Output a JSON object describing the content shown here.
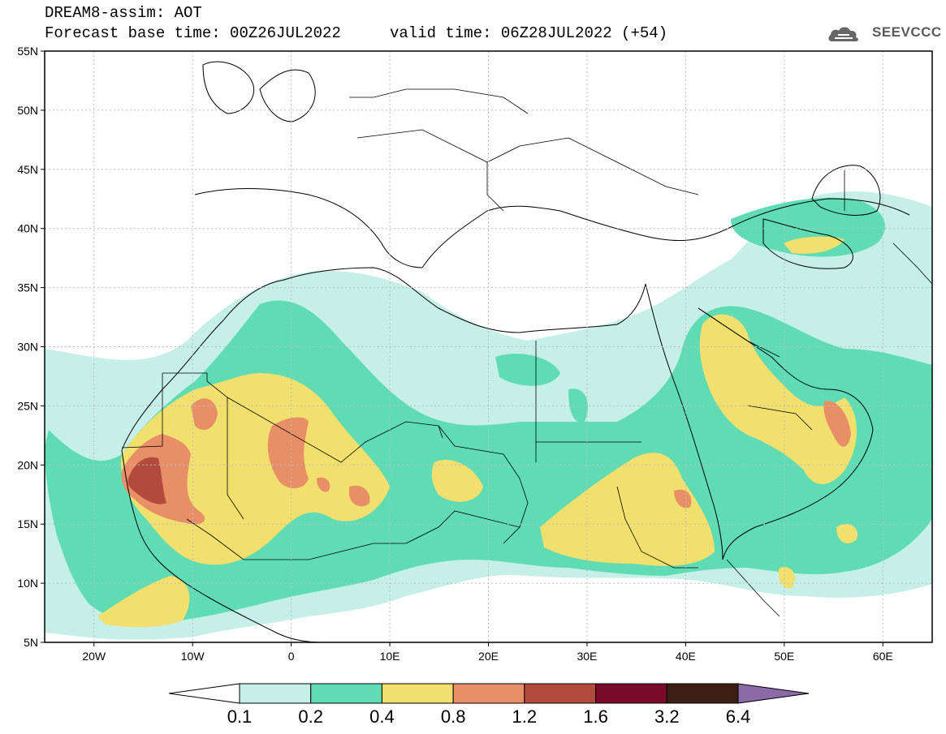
{
  "header": {
    "title": "DREAM8-assim: AOT",
    "base_time": "Forecast base time: 00Z26JUL2022",
    "valid_time": "valid time: 06Z28JUL2022 (+54)",
    "logo_text": "SEEVCCC"
  },
  "axes": {
    "lat_labels": [
      "55N",
      "50N",
      "45N",
      "40N",
      "35N",
      "30N",
      "25N",
      "20N",
      "15N",
      "10N",
      "5N"
    ],
    "lat_values": [
      55,
      50,
      45,
      40,
      35,
      30,
      25,
      20,
      15,
      10,
      5
    ],
    "lon_labels": [
      "20W",
      "10W",
      "0",
      "10E",
      "20E",
      "30E",
      "40E",
      "50E",
      "60E"
    ],
    "lon_values": [
      -20,
      -10,
      0,
      10,
      20,
      30,
      40,
      50,
      60
    ],
    "lon_range": [
      -25,
      65
    ],
    "lat_range": [
      5,
      55
    ],
    "grid": "dotted"
  },
  "colorbar": {
    "labels": [
      "0.1",
      "0.2",
      "0.4",
      "0.8",
      "1.2",
      "1.6",
      "3.2",
      "6.4"
    ],
    "colors": [
      "#ffffff",
      "#c6efe8",
      "#5fdcb4",
      "#f2e06e",
      "#e88f68",
      "#b34a3e",
      "#7a0a2a",
      "#3a1f12",
      "#8c6aa8"
    ]
  },
  "legend_colors": {
    "level_0_1": "#c6efe8",
    "level_0_2": "#5fdcb4",
    "level_0_4": "#f2e06e",
    "level_0_8": "#e88f68",
    "level_1_2": "#b34a3e"
  }
}
